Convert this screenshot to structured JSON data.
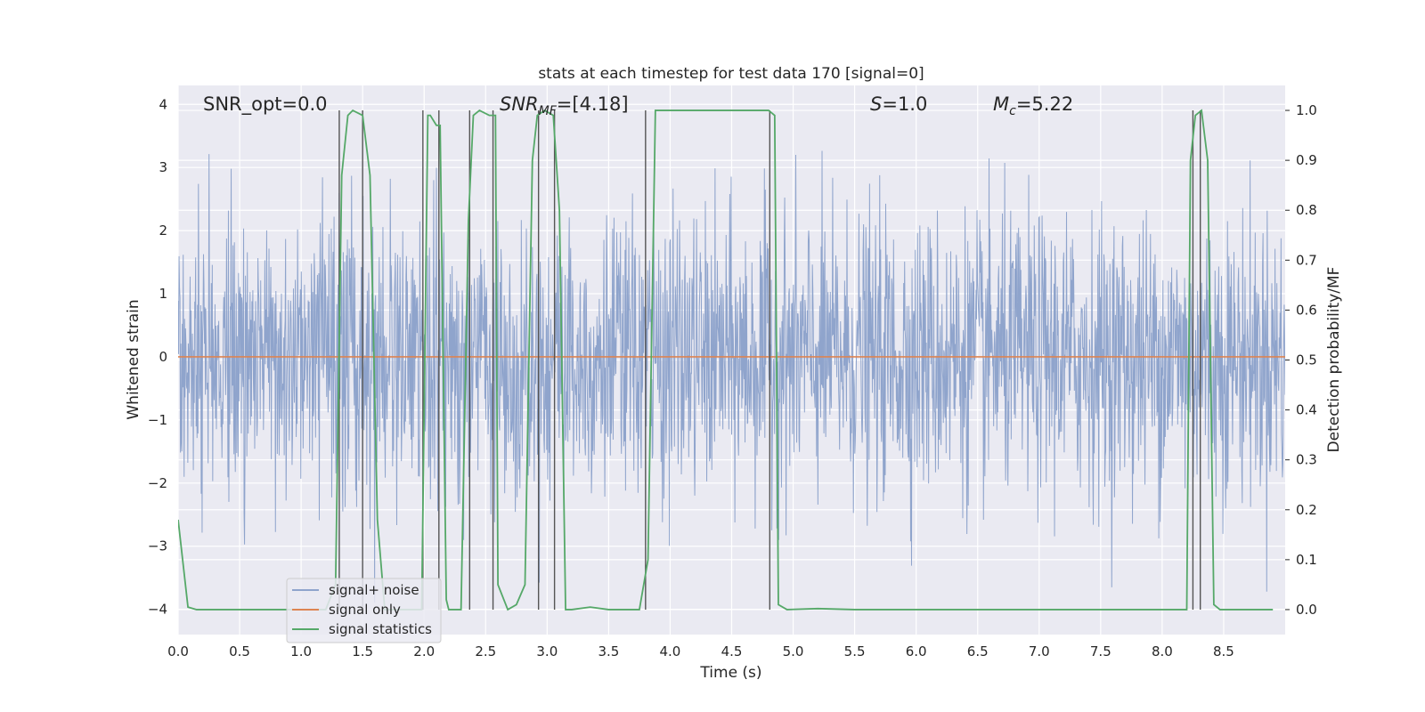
{
  "chart_data": {
    "type": "line",
    "title": "stats at each timestep for test data 170 [signal=0]",
    "xlabel": "Time (s)",
    "ylabel": "Whitened strain",
    "ylabel_right": "Detection probability/MF",
    "xlim": [
      0.0,
      9.0
    ],
    "ylim": [
      -4.4,
      4.3
    ],
    "ylim_right": [
      -0.05,
      1.05
    ],
    "xticks": [
      "0.0",
      "0.5",
      "1.0",
      "1.5",
      "2.0",
      "2.5",
      "3.0",
      "3.5",
      "4.0",
      "4.5",
      "5.0",
      "5.5",
      "6.0",
      "6.5",
      "7.0",
      "7.5",
      "8.0",
      "8.5"
    ],
    "yticks": [
      "−4",
      "−3",
      "−2",
      "−1",
      "0",
      "1",
      "2",
      "3",
      "4"
    ],
    "yticks_right": [
      "0.0",
      "0.1",
      "0.2",
      "0.3",
      "0.4",
      "0.5",
      "0.6",
      "0.7",
      "0.8",
      "0.9",
      "1.0"
    ],
    "grid": true,
    "legend_position": "lower-left",
    "annotations": {
      "snr_opt": "SNR_opt=0.0",
      "snr_mf_label": "SNR",
      "snr_mf_sub": "MF",
      "snr_mf_value": "=[4.18]",
      "s_label": "S",
      "s_value": "=1.0",
      "mc_label": "M",
      "mc_sub": "c",
      "mc_value": "=5.22"
    },
    "series": [
      {
        "name": "signal+ noise",
        "color": "#8fa4cc",
        "noise_amplitude": 1.1,
        "peak_abs": 4.0
      },
      {
        "name": "signal only",
        "color": "#dd8452",
        "x": [
          0.0,
          9.0
        ],
        "y": [
          0.0,
          0.0
        ]
      },
      {
        "name": "signal statistics",
        "color": "#55a868",
        "axis": "right",
        "x": [
          0.0,
          0.08,
          0.15,
          1.2,
          1.28,
          1.33,
          1.38,
          1.42,
          1.5,
          1.56,
          1.62,
          1.68,
          1.98,
          2.03,
          2.05,
          2.1,
          2.13,
          2.18,
          2.2,
          2.3,
          2.36,
          2.4,
          2.45,
          2.53,
          2.58,
          2.6,
          2.68,
          2.75,
          2.82,
          2.88,
          2.92,
          2.98,
          3.05,
          3.1,
          3.15,
          3.2,
          3.35,
          3.5,
          3.75,
          3.82,
          3.88,
          4.0,
          4.5,
          4.8,
          4.85,
          4.88,
          4.95,
          5.2,
          5.5,
          7.0,
          8.1,
          8.2,
          8.23,
          8.27,
          8.32,
          8.37,
          8.42,
          8.47,
          8.9
        ],
        "y": [
          0.18,
          0.005,
          0.0,
          0.0,
          0.05,
          0.87,
          0.99,
          1.0,
          0.99,
          0.87,
          0.18,
          0.0,
          0.0,
          0.99,
          0.99,
          0.97,
          0.97,
          0.02,
          0.0,
          0.0,
          0.78,
          0.99,
          1.0,
          0.99,
          0.99,
          0.05,
          0.0,
          0.01,
          0.05,
          0.9,
          0.99,
          1.0,
          0.99,
          0.8,
          0.0,
          0.0,
          0.005,
          0.0,
          0.0,
          0.1,
          1.0,
          1.0,
          1.0,
          1.0,
          0.99,
          0.01,
          0.0,
          0.002,
          0.0,
          0.0,
          0.0,
          0.0,
          0.9,
          0.99,
          1.0,
          0.9,
          0.01,
          0.0,
          0.0
        ]
      }
    ],
    "vertical_markers": {
      "color": "#555555",
      "x": [
        1.31,
        1.5,
        1.99,
        2.12,
        2.37,
        2.56,
        2.93,
        3.06,
        3.8,
        4.81,
        8.25,
        8.31
      ],
      "top": 1.0,
      "bottom": 0.0
    }
  }
}
